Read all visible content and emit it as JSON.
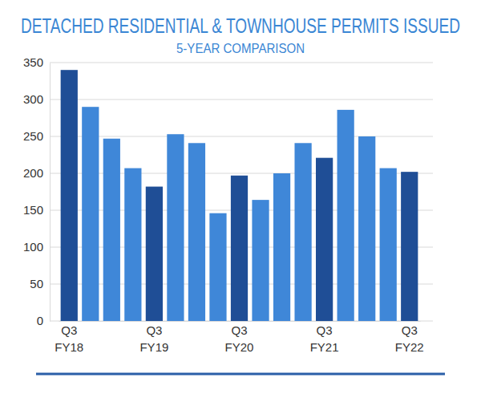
{
  "chart_data": {
    "type": "bar",
    "title": "DETACHED RESIDENTIAL & TOWNHOUSE PERMITS ISSUED",
    "subtitle": "5-YEAR COMPARISON",
    "categories": [
      "Q3\nFY18",
      null,
      null,
      null,
      "Q3\nFY19",
      null,
      null,
      null,
      "Q3\nFY20",
      null,
      null,
      null,
      "Q3\nFY21",
      null,
      null,
      null,
      "Q3\nFY22"
    ],
    "values": [
      340,
      290,
      247,
      207,
      182,
      253,
      241,
      146,
      197,
      164,
      200,
      241,
      221,
      286,
      250,
      207,
      202
    ],
    "colors": [
      "#1f4e96",
      "#3f87d8",
      "#3f87d8",
      "#3f87d8",
      "#1f4e96",
      "#3f87d8",
      "#3f87d8",
      "#3f87d8",
      "#1f4e96",
      "#3f87d8",
      "#3f87d8",
      "#3f87d8",
      "#1f4e96",
      "#3f87d8",
      "#3f87d8",
      "#3f87d8",
      "#1f4e96"
    ],
    "ylim": [
      0,
      350
    ],
    "yticks": [
      0,
      50,
      100,
      150,
      200,
      250,
      300,
      350
    ],
    "grid": true
  }
}
